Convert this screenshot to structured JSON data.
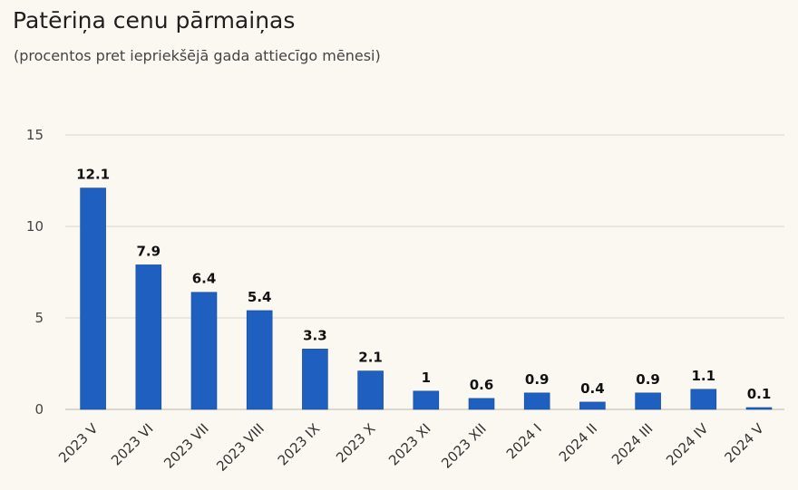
{
  "title": "Patēriņa cenu pārmaiņas",
  "subtitle": "(procentos pret iepriekšējā gada attiecīgo mēnesi)",
  "colors": {
    "bar": "#1f5fbf",
    "bar_stroke": "#174b99",
    "grid": "#d9d6cf",
    "background": "#fbf8f1"
  },
  "chart_data": {
    "type": "bar",
    "title": "Patēriņa cenu pārmaiņas",
    "subtitle": "(procentos pret iepriekšējā gada attiecīgo mēnesi)",
    "categories": [
      "2023 V",
      "2023 VI",
      "2023 VII",
      "2023 VIII",
      "2023 IX",
      "2023 X",
      "2023 XI",
      "2023 XII",
      "2024 I",
      "2024 II",
      "2024 III",
      "2024 IV",
      "2024 V"
    ],
    "values": [
      12.1,
      7.9,
      6.4,
      5.4,
      3.3,
      2.1,
      1,
      0.6,
      0.9,
      0.4,
      0.9,
      1.1,
      0.1
    ],
    "value_labels": [
      "12.1",
      "7.9",
      "6.4",
      "5.4",
      "3.3",
      "2.1",
      "1",
      "0.6",
      "0.9",
      "0.4",
      "0.9",
      "1.1",
      "0.1"
    ],
    "ylim": [
      0,
      15
    ],
    "yticks": [
      0,
      5,
      10,
      15
    ],
    "ytick_labels": [
      "0",
      "5",
      "10",
      "15"
    ],
    "xlabel": "",
    "ylabel": "",
    "grid": true,
    "legend": "none"
  }
}
